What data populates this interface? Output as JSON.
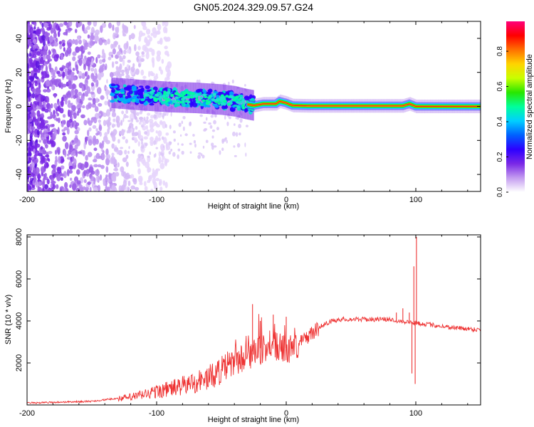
{
  "title": "GN05.2024.329.09.57.G24",
  "chart_data": [
    {
      "type": "heatmap",
      "xlabel": "Height of straight line (km)",
      "ylabel": "Frequency (Hz)",
      "xlim": [
        -200,
        150
      ],
      "ylim": [
        -50,
        50
      ],
      "x_ticks": [
        "-200",
        "-100",
        "0",
        "100"
      ],
      "y_ticks": [
        "-40",
        "-20",
        "0",
        "20",
        "40"
      ],
      "grid": false,
      "colorbar": {
        "label": "Normalized spectral amplitude",
        "ticks": [
          "0.0",
          "0.2",
          "0.4",
          "0.6",
          "0.8"
        ],
        "range": [
          0,
          0.97
        ],
        "colors": [
          "#ffffff",
          "#c49cf0",
          "#7a28e6",
          "#2d00ff",
          "#0060ff",
          "#00cfff",
          "#00ff9c",
          "#28e600",
          "#c8ff00",
          "#ffd400",
          "#ff7000",
          "#ff0000",
          "#ff007a"
        ]
      },
      "trace": [
        {
          "x": -135,
          "f": 8.0
        },
        {
          "x": -110,
          "f": 6.5
        },
        {
          "x": -90,
          "f": 5.5
        },
        {
          "x": -70,
          "f": 5.0
        },
        {
          "x": -50,
          "f": 4.0
        },
        {
          "x": -40,
          "f": 3.0
        },
        {
          "x": -32,
          "f": 1.5
        },
        {
          "x": -25,
          "f": 0.5
        },
        {
          "x": -18,
          "f": 1.5
        },
        {
          "x": -8,
          "f": 1.5
        },
        {
          "x": -5,
          "f": 3.0
        },
        {
          "x": 0,
          "f": 2.0
        },
        {
          "x": 5,
          "f": 0.5
        },
        {
          "x": 20,
          "f": 0.3
        },
        {
          "x": 90,
          "f": 0.3
        },
        {
          "x": 95,
          "f": 1.5
        },
        {
          "x": 100,
          "f": 0.0
        },
        {
          "x": 150,
          "f": 0.0
        }
      ]
    },
    {
      "type": "line",
      "xlabel": "Height of straight line (km)",
      "ylabel": "SNR (10 * v/v)",
      "xlim": [
        -200,
        150
      ],
      "ylim": [
        0,
        8100
      ],
      "x_ticks": [
        "-200",
        "-100",
        "0",
        "100"
      ],
      "y_ticks": [
        "2000",
        "4000",
        "6000",
        "8000"
      ],
      "grid": false,
      "series": [
        {
          "color": "#ee3333",
          "envelope": [
            {
              "x": -200,
              "y": 100
            },
            {
              "x": -150,
              "y": 180
            },
            {
              "x": -120,
              "y": 400
            },
            {
              "x": -100,
              "y": 700
            },
            {
              "x": -80,
              "y": 1000
            },
            {
              "x": -60,
              "y": 1400
            },
            {
              "x": -40,
              "y": 2200
            },
            {
              "x": -20,
              "y": 2700
            },
            {
              "x": -10,
              "y": 3000
            },
            {
              "x": 0,
              "y": 2700
            },
            {
              "x": 10,
              "y": 3000
            },
            {
              "x": 20,
              "y": 3500
            },
            {
              "x": 30,
              "y": 3900
            },
            {
              "x": 40,
              "y": 4100
            },
            {
              "x": 60,
              "y": 4100
            },
            {
              "x": 80,
              "y": 4100
            },
            {
              "x": 90,
              "y": 4000
            },
            {
              "x": 110,
              "y": 3850
            },
            {
              "x": 130,
              "y": 3700
            },
            {
              "x": 150,
              "y": 3600
            }
          ],
          "spikes": [
            {
              "x": -26,
              "y": 4800
            },
            {
              "x": -20,
              "y": 4000
            },
            {
              "x": -10,
              "y": 4300
            },
            {
              "x": 0,
              "y": 4200
            },
            {
              "x": 85,
              "y": 4400
            },
            {
              "x": 90,
              "y": 4600
            },
            {
              "x": 95,
              "y": 4400
            },
            {
              "x": 97,
              "y": 1500
            },
            {
              "x": 98.5,
              "y": 6600
            },
            {
              "x": 99.5,
              "y": 1000
            },
            {
              "x": 100.5,
              "y": 8000
            }
          ]
        }
      ]
    }
  ]
}
